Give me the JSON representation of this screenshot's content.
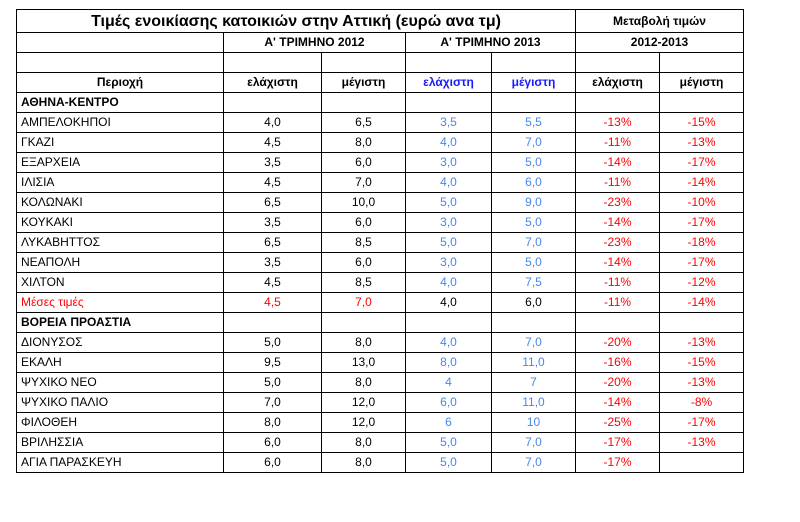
{
  "colors": {
    "blue_header": "#1a1aff",
    "blue_value": "#4a86e8",
    "red": "#ff0000"
  },
  "header": {
    "title": "Τιμές ενοικίασης κατοικιών στην Αττική (ευρώ ανα τμ)",
    "change_title": "Μεταβολή τιμών",
    "q1_2012": "Α' ΤΡΙΜΗΝΟ 2012",
    "q1_2013": "Α' ΤΡΙΜΗΝΟ 2013",
    "period": "2012-2013",
    "area": "Περιοχή",
    "min": "ελάχιστη",
    "max": "μέγιστη"
  },
  "sections": [
    {
      "name": "ΑΘΗΝΑ-ΚΕΝΤΡΟ",
      "rows": [
        [
          "ΑΜΠΕΛΟΚΗΠΟΙ",
          "4,0",
          "6,5",
          "3,5",
          "5,5",
          "-13%",
          "-15%"
        ],
        [
          "ΓΚΑΖΙ",
          "4,5",
          "8,0",
          "4,0",
          "7,0",
          "-11%",
          "-13%"
        ],
        [
          "ΕΞΑΡΧΕΙΑ",
          "3,5",
          "6,0",
          "3,0",
          "5,0",
          "-14%",
          "-17%"
        ],
        [
          "ΙΛΙΣΙΑ",
          "4,5",
          "7,0",
          "4,0",
          "6,0",
          "-11%",
          "-14%"
        ],
        [
          "ΚΟΛΩΝΑΚΙ",
          "6,5",
          "10,0",
          "5,0",
          "9,0",
          "-23%",
          "-10%"
        ],
        [
          "ΚΟΥΚΑΚΙ",
          "3,5",
          "6,0",
          "3,0",
          "5,0",
          "-14%",
          "-17%"
        ],
        [
          "ΛΥΚΑΒΗΤΤΟΣ",
          "6,5",
          "8,5",
          "5,0",
          "7,0",
          "-23%",
          "-18%"
        ],
        [
          "ΝΕΑΠΟΛΗ",
          "3,5",
          "6,0",
          "3,0",
          "5,0",
          "-14%",
          "-17%"
        ],
        [
          "ΧΙΛΤΟΝ",
          "4,5",
          "8,5",
          "4,0",
          "7,5",
          "-11%",
          "-12%"
        ]
      ],
      "average": [
        "Μέσες τιμές",
        "4,5",
        "7,0",
        "4,0",
        "6,0",
        "-11%",
        "-14%"
      ]
    },
    {
      "name": "ΒΟΡΕΙΑ ΠΡΟΑΣΤΙΑ",
      "rows": [
        [
          "ΔΙΟΝΥΣΟΣ",
          "5,0",
          "8,0",
          "4,0",
          "7,0",
          "-20%",
          "-13%"
        ],
        [
          "ΕΚΑΛΗ",
          "9,5",
          "13,0",
          "8,0",
          "11,0",
          "-16%",
          "-15%"
        ],
        [
          "ΨΥΧΙΚΟ ΝΕΟ",
          "5,0",
          "8,0",
          "4",
          "7",
          "-20%",
          "-13%"
        ],
        [
          "ΨΥΧΙΚΟ ΠΑΛΙΟ",
          "7,0",
          "12,0",
          "6,0",
          "11,0",
          "-14%",
          "-8%"
        ],
        [
          "ΦΙΛΟΘΕΗ",
          "8,0",
          "12,0",
          "6",
          "10",
          "-25%",
          "-17%"
        ],
        [
          "ΒΡΙΛΗΣΣΙΑ",
          "6,0",
          "8,0",
          "5,0",
          "7,0",
          "-17%",
          "-13%"
        ],
        [
          "ΑΓΙΑ ΠΑΡΑΣΚΕΥΗ",
          "6,0",
          "8,0",
          "5,0",
          "7,0",
          "-17%",
          ""
        ]
      ]
    }
  ]
}
